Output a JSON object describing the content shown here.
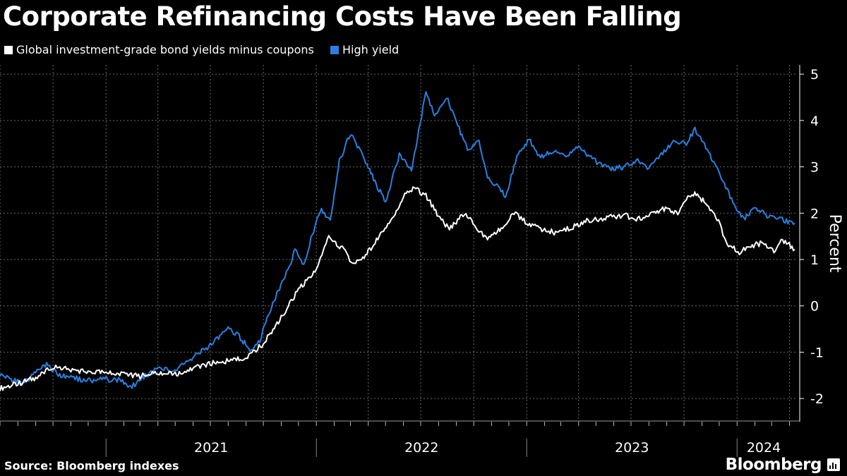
{
  "title": "Corporate Refinancing Costs Have Been Falling",
  "source": "Source: Bloomberg indexes",
  "brand": "Bloomberg",
  "colors": {
    "background": "#000000",
    "grid": "#6b6b6b",
    "white_series": "#ffffff",
    "blue_series": "#2a7fe0"
  },
  "chart_data": {
    "type": "line",
    "ylabel": "Percent",
    "ylim": [
      -2.5,
      5.2
    ],
    "yticks": [
      5,
      4,
      3,
      2,
      1,
      0,
      -1,
      -2
    ],
    "x_range": [
      "2020-07-01",
      "2024-04-15"
    ],
    "x_labels": [
      {
        "label": "2021",
        "date": "2021-01-01"
      },
      {
        "label": "2022",
        "date": "2022-01-01"
      },
      {
        "label": "2023",
        "date": "2023-01-01"
      },
      {
        "label": "2024",
        "date": "2024-01-01"
      }
    ],
    "grid": true,
    "legend_position": "top-left",
    "series": [
      {
        "name": "Global investment-grade bond yields minus coupons",
        "color": "#ffffff",
        "points": [
          [
            "2020-07-01",
            -1.78
          ],
          [
            "2020-08-01",
            -1.68
          ],
          [
            "2020-09-01",
            -1.55
          ],
          [
            "2020-10-01",
            -1.32
          ],
          [
            "2020-11-01",
            -1.38
          ],
          [
            "2020-12-01",
            -1.42
          ],
          [
            "2021-01-01",
            -1.45
          ],
          [
            "2021-02-01",
            -1.48
          ],
          [
            "2021-03-01",
            -1.52
          ],
          [
            "2021-04-01",
            -1.45
          ],
          [
            "2021-05-01",
            -1.48
          ],
          [
            "2021-06-01",
            -1.35
          ],
          [
            "2021-07-01",
            -1.25
          ],
          [
            "2021-08-01",
            -1.18
          ],
          [
            "2021-09-01",
            -1.12
          ],
          [
            "2021-10-01",
            -0.82
          ],
          [
            "2021-11-01",
            -0.25
          ],
          [
            "2021-12-01",
            0.35
          ],
          [
            "2022-01-01",
            0.75
          ],
          [
            "2022-01-20",
            1.48
          ],
          [
            "2022-02-15",
            1.25
          ],
          [
            "2022-03-05",
            0.92
          ],
          [
            "2022-03-25",
            1.05
          ],
          [
            "2022-04-20",
            1.5
          ],
          [
            "2022-05-10",
            1.85
          ],
          [
            "2022-06-01",
            2.35
          ],
          [
            "2022-06-20",
            2.55
          ],
          [
            "2022-07-10",
            2.38
          ],
          [
            "2022-08-01",
            1.92
          ],
          [
            "2022-08-20",
            1.65
          ],
          [
            "2022-09-15",
            2.0
          ],
          [
            "2022-10-05",
            1.7
          ],
          [
            "2022-10-25",
            1.45
          ],
          [
            "2022-11-20",
            1.7
          ],
          [
            "2022-12-10",
            2.02
          ],
          [
            "2023-01-01",
            1.8
          ],
          [
            "2023-01-25",
            1.65
          ],
          [
            "2023-02-20",
            1.58
          ],
          [
            "2023-03-20",
            1.7
          ],
          [
            "2023-04-20",
            1.85
          ],
          [
            "2023-05-20",
            1.9
          ],
          [
            "2023-06-20",
            1.95
          ],
          [
            "2023-07-10",
            1.88
          ],
          [
            "2023-08-01",
            1.95
          ],
          [
            "2023-08-25",
            2.1
          ],
          [
            "2023-09-20",
            2.0
          ],
          [
            "2023-10-15",
            2.45
          ],
          [
            "2023-11-05",
            2.25
          ],
          [
            "2023-11-25",
            1.95
          ],
          [
            "2023-12-15",
            1.35
          ],
          [
            "2024-01-05",
            1.15
          ],
          [
            "2024-01-25",
            1.3
          ],
          [
            "2024-02-15",
            1.35
          ],
          [
            "2024-03-05",
            1.2
          ],
          [
            "2024-03-20",
            1.42
          ],
          [
            "2024-04-10",
            1.22
          ]
        ]
      },
      {
        "name": "High yield",
        "color": "#2a7fe0",
        "points": [
          [
            "2020-07-01",
            -1.48
          ],
          [
            "2020-07-20",
            -1.58
          ],
          [
            "2020-08-10",
            -1.68
          ],
          [
            "2020-09-01",
            -1.45
          ],
          [
            "2020-09-20",
            -1.25
          ],
          [
            "2020-10-10",
            -1.5
          ],
          [
            "2020-11-01",
            -1.55
          ],
          [
            "2020-12-01",
            -1.62
          ],
          [
            "2021-01-01",
            -1.58
          ],
          [
            "2021-01-25",
            -1.6
          ],
          [
            "2021-02-15",
            -1.75
          ],
          [
            "2021-03-05",
            -1.55
          ],
          [
            "2021-04-01",
            -1.35
          ],
          [
            "2021-05-01",
            -1.4
          ],
          [
            "2021-06-01",
            -1.1
          ],
          [
            "2021-07-01",
            -0.85
          ],
          [
            "2021-08-01",
            -0.5
          ],
          [
            "2021-08-20",
            -0.65
          ],
          [
            "2021-09-10",
            -1.0
          ],
          [
            "2021-09-25",
            -0.75
          ],
          [
            "2021-10-15",
            0.0
          ],
          [
            "2021-11-05",
            0.55
          ],
          [
            "2021-11-25",
            1.2
          ],
          [
            "2021-12-10",
            0.85
          ],
          [
            "2021-12-25",
            1.55
          ],
          [
            "2022-01-10",
            2.1
          ],
          [
            "2022-01-25",
            1.8
          ],
          [
            "2022-02-10",
            3.15
          ],
          [
            "2022-03-01",
            3.7
          ],
          [
            "2022-03-25",
            3.2
          ],
          [
            "2022-04-15",
            2.6
          ],
          [
            "2022-05-01",
            2.25
          ],
          [
            "2022-05-25",
            3.25
          ],
          [
            "2022-06-15",
            2.95
          ],
          [
            "2022-07-10",
            4.6
          ],
          [
            "2022-07-25",
            4.1
          ],
          [
            "2022-08-15",
            4.5
          ],
          [
            "2022-09-01",
            3.95
          ],
          [
            "2022-09-20",
            3.4
          ],
          [
            "2022-10-10",
            3.55
          ],
          [
            "2022-10-25",
            2.75
          ],
          [
            "2022-11-10",
            2.6
          ],
          [
            "2022-11-25",
            2.35
          ],
          [
            "2022-12-15",
            3.25
          ],
          [
            "2023-01-05",
            3.6
          ],
          [
            "2023-01-25",
            3.2
          ],
          [
            "2023-02-15",
            3.35
          ],
          [
            "2023-03-10",
            3.2
          ],
          [
            "2023-03-30",
            3.45
          ],
          [
            "2023-04-20",
            3.2
          ],
          [
            "2023-05-10",
            3.05
          ],
          [
            "2023-05-30",
            2.95
          ],
          [
            "2023-06-20",
            3.0
          ],
          [
            "2023-07-10",
            3.15
          ],
          [
            "2023-08-01",
            2.95
          ],
          [
            "2023-08-25",
            3.3
          ],
          [
            "2023-09-15",
            3.55
          ],
          [
            "2023-10-05",
            3.5
          ],
          [
            "2023-10-20",
            3.8
          ],
          [
            "2023-11-10",
            3.4
          ],
          [
            "2023-11-25",
            3.0
          ],
          [
            "2023-12-15",
            2.5
          ],
          [
            "2024-01-01",
            2.0
          ],
          [
            "2024-01-15",
            1.9
          ],
          [
            "2024-02-01",
            2.15
          ],
          [
            "2024-02-20",
            1.95
          ],
          [
            "2024-03-10",
            1.9
          ],
          [
            "2024-04-10",
            1.78
          ]
        ]
      }
    ]
  }
}
